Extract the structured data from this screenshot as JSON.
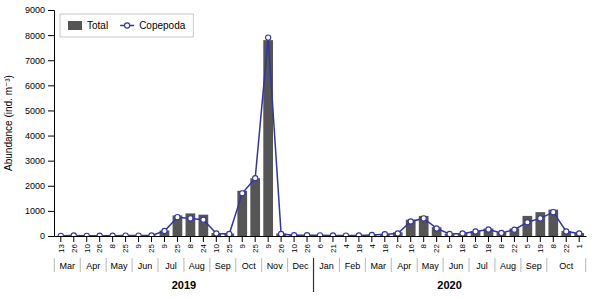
{
  "chart_data": {
    "type": "bar",
    "ylabel": "Abundance (ind. m⁻³)",
    "ylim": [
      0,
      9000
    ],
    "yticks": [
      0,
      1000,
      2000,
      3000,
      4000,
      5000,
      6000,
      7000,
      8000,
      9000
    ],
    "grid": false,
    "legend": "upper left",
    "categories": [
      [
        "13",
        "Mar",
        "2019"
      ],
      [
        "26",
        "Mar",
        "2019"
      ],
      [
        "10",
        "Apr",
        "2019"
      ],
      [
        "26",
        "Apr",
        "2019"
      ],
      [
        "8",
        "May",
        "2019"
      ],
      [
        "25",
        "May",
        "2019"
      ],
      [
        "9",
        "Jun",
        "2019"
      ],
      [
        "25",
        "Jun",
        "2019"
      ],
      [
        "9",
        "Jul",
        "2019"
      ],
      [
        "25",
        "Jul",
        "2019"
      ],
      [
        "8",
        "Aug",
        "2019"
      ],
      [
        "24",
        "Aug",
        "2019"
      ],
      [
        "10",
        "Sep",
        "2019"
      ],
      [
        "25",
        "Sep",
        "2019"
      ],
      [
        "9",
        "Oct",
        "2019"
      ],
      [
        "25",
        "Oct",
        "2019"
      ],
      [
        "9",
        "Nov",
        "2019"
      ],
      [
        "26",
        "Nov",
        "2019"
      ],
      [
        "10",
        "Dec",
        "2019"
      ],
      [
        "26",
        "Dec",
        "2019"
      ],
      [
        "6",
        "Jan",
        "2020"
      ],
      [
        "21",
        "Jan",
        "2020"
      ],
      [
        "4",
        "Feb",
        "2020"
      ],
      [
        "18",
        "Feb",
        "2020"
      ],
      [
        "4",
        "Mar",
        "2020"
      ],
      [
        "18",
        "Mar",
        "2020"
      ],
      [
        "2",
        "Apr",
        "2020"
      ],
      [
        "16",
        "Apr",
        "2020"
      ],
      [
        "8",
        "May",
        "2020"
      ],
      [
        "22",
        "May",
        "2020"
      ],
      [
        "5",
        "Jun",
        "2020"
      ],
      [
        "18",
        "Jun",
        "2020"
      ],
      [
        "6",
        "Jul",
        "2020"
      ],
      [
        "18",
        "Jul",
        "2020"
      ],
      [
        "8",
        "Aug",
        "2020"
      ],
      [
        "22",
        "Aug",
        "2020"
      ],
      [
        "5",
        "Sep",
        "2020"
      ],
      [
        "19",
        "Sep",
        "2020"
      ],
      [
        "8",
        "Oct",
        "2020"
      ],
      [
        "22",
        "Oct",
        "2020"
      ],
      [
        "1",
        "Oct",
        "2020"
      ]
    ],
    "series": [
      {
        "name": "Total",
        "type": "bar",
        "color": "#555555",
        "values": [
          5,
          15,
          5,
          10,
          10,
          20,
          15,
          20,
          220,
          820,
          900,
          850,
          120,
          100,
          1800,
          2300,
          7800,
          100,
          50,
          40,
          30,
          25,
          15,
          20,
          45,
          80,
          150,
          650,
          800,
          350,
          100,
          120,
          200,
          300,
          150,
          300,
          800,
          950,
          1050,
          200,
          120
        ]
      },
      {
        "name": "Copepoda",
        "type": "line",
        "color": "#3333aa",
        "marker": "circle",
        "values": [
          5,
          20,
          5,
          10,
          10,
          15,
          15,
          20,
          200,
          750,
          700,
          650,
          100,
          80,
          1700,
          2300,
          7900,
          80,
          30,
          30,
          25,
          20,
          15,
          20,
          40,
          70,
          100,
          580,
          700,
          300,
          80,
          100,
          180,
          260,
          120,
          250,
          550,
          700,
          950,
          180,
          100
        ]
      }
    ]
  }
}
